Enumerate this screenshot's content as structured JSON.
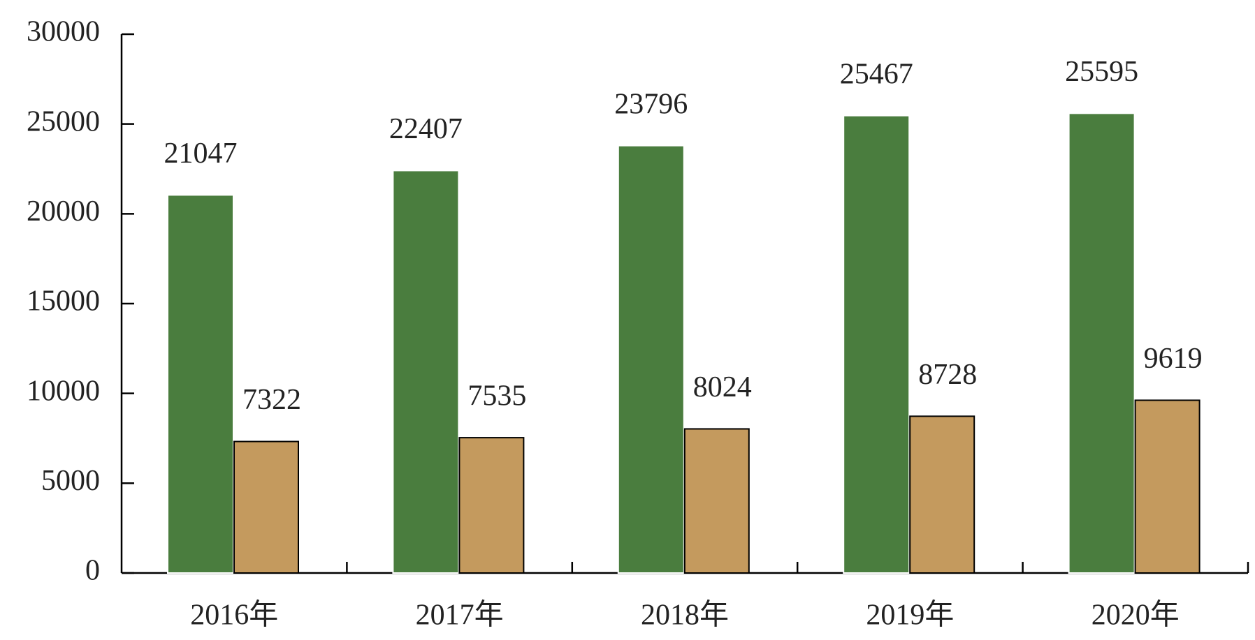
{
  "chart_data": {
    "type": "bar",
    "categories": [
      "2016年",
      "2017年",
      "2018年",
      "2019年",
      "2020年"
    ],
    "series": [
      {
        "color": "#4a7d3e",
        "values": [
          21047,
          22407,
          23796,
          25467,
          25595
        ]
      },
      {
        "color": "#c49a5e",
        "values": [
          7322,
          7535,
          8024,
          8728,
          9619
        ]
      }
    ],
    "ylim": [
      0,
      30000
    ],
    "yticks": [
      0,
      5000,
      10000,
      15000,
      20000,
      25000,
      30000
    ],
    "grid": false
  }
}
